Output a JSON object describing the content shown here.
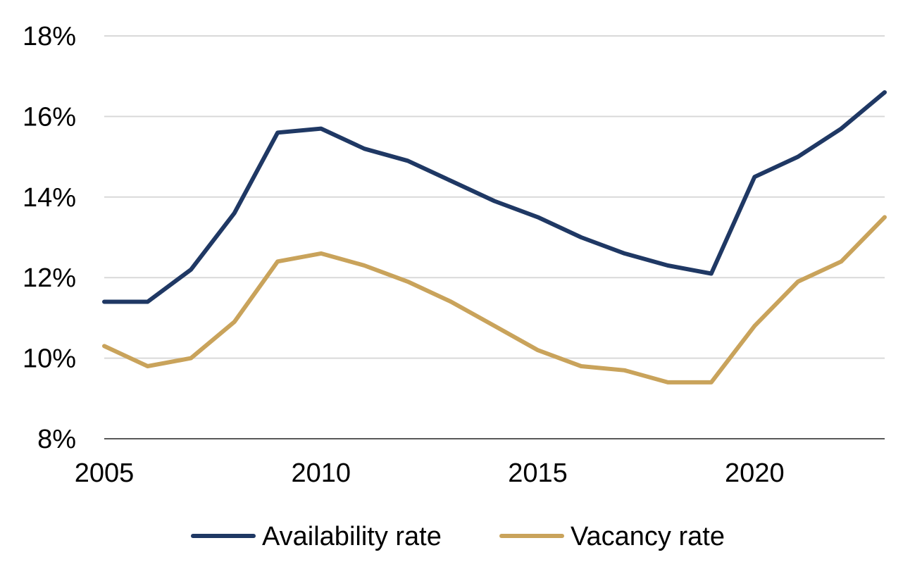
{
  "chart_data": {
    "type": "line",
    "title": "",
    "xlabel": "",
    "ylabel": "",
    "x": [
      2005,
      2006,
      2007,
      2008,
      2009,
      2010,
      2011,
      2012,
      2013,
      2014,
      2015,
      2016,
      2017,
      2018,
      2019,
      2020,
      2021,
      2022,
      2023
    ],
    "x_ticks": [
      "2005",
      "2010",
      "2015",
      "2020"
    ],
    "x_tick_values": [
      2005,
      2010,
      2015,
      2020
    ],
    "xlim": [
      2005,
      2023
    ],
    "ylim": [
      8,
      18
    ],
    "y_ticks": [
      8,
      10,
      12,
      14,
      16,
      18
    ],
    "y_tick_labels": [
      "8%",
      "10%",
      "12%",
      "14%",
      "16%",
      "18%"
    ],
    "y_unit": "%",
    "grid": true,
    "legend_position": "bottom",
    "series": [
      {
        "name": "Availability rate",
        "color": "#1f3864",
        "values": [
          11.4,
          11.4,
          12.2,
          13.6,
          15.6,
          15.7,
          15.2,
          14.9,
          14.4,
          13.9,
          13.5,
          13.0,
          12.6,
          12.3,
          12.1,
          14.5,
          15.0,
          15.7,
          16.6
        ]
      },
      {
        "name": "Vacancy rate",
        "color": "#c9a35b",
        "values": [
          10.3,
          9.8,
          10.0,
          10.9,
          12.4,
          12.6,
          12.3,
          11.9,
          11.4,
          10.8,
          10.2,
          9.8,
          9.7,
          9.4,
          9.4,
          10.8,
          11.9,
          12.4,
          13.5
        ]
      }
    ]
  }
}
